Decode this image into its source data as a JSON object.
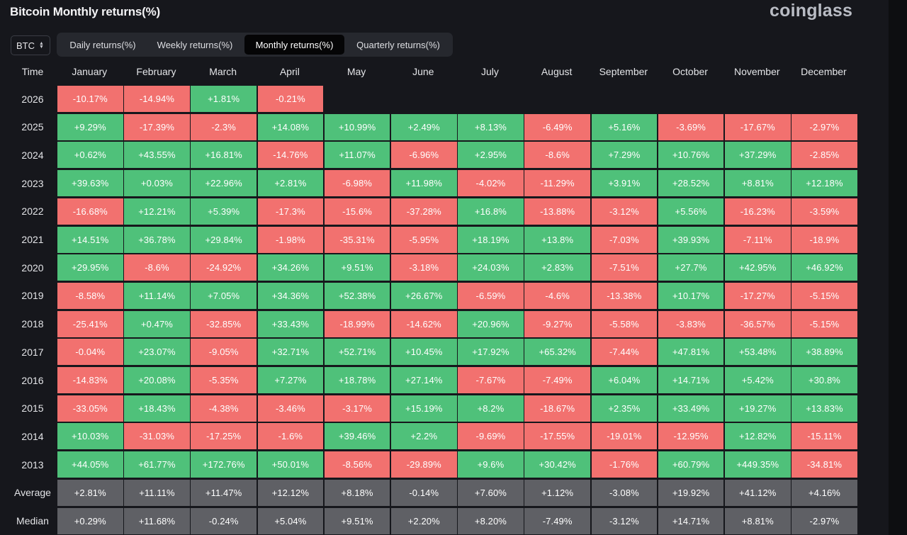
{
  "title": "Bitcoin Monthly returns(%)",
  "logo": "coinglass",
  "coin_select": {
    "value": "BTC",
    "icon": "chevron-up-down-icon"
  },
  "tabs": [
    {
      "label": "Daily returns(%)",
      "active": false
    },
    {
      "label": "Weekly returns(%)",
      "active": false
    },
    {
      "label": "Monthly returns(%)",
      "active": true
    },
    {
      "label": "Quarterly returns(%)",
      "active": false
    }
  ],
  "colors": {
    "positive": "#4fc17a",
    "negative": "#f2716f",
    "stat": "#5f6065",
    "background": "#16171c"
  },
  "table": {
    "time_header": "Time",
    "months": [
      "January",
      "February",
      "March",
      "April",
      "May",
      "June",
      "July",
      "August",
      "September",
      "October",
      "November",
      "December"
    ],
    "rows": [
      {
        "year": "2026",
        "values": [
          "-10.17%",
          "-14.94%",
          "+1.81%",
          "-0.21%"
        ]
      },
      {
        "year": "2025",
        "values": [
          "+9.29%",
          "-17.39%",
          "-2.3%",
          "+14.08%",
          "+10.99%",
          "+2.49%",
          "+8.13%",
          "-6.49%",
          "+5.16%",
          "-3.69%",
          "-17.67%",
          "-2.97%"
        ]
      },
      {
        "year": "2024",
        "values": [
          "+0.62%",
          "+43.55%",
          "+16.81%",
          "-14.76%",
          "+11.07%",
          "-6.96%",
          "+2.95%",
          "-8.6%",
          "+7.29%",
          "+10.76%",
          "+37.29%",
          "-2.85%"
        ]
      },
      {
        "year": "2023",
        "values": [
          "+39.63%",
          "+0.03%",
          "+22.96%",
          "+2.81%",
          "-6.98%",
          "+11.98%",
          "-4.02%",
          "-11.29%",
          "+3.91%",
          "+28.52%",
          "+8.81%",
          "+12.18%"
        ]
      },
      {
        "year": "2022",
        "values": [
          "-16.68%",
          "+12.21%",
          "+5.39%",
          "-17.3%",
          "-15.6%",
          "-37.28%",
          "+16.8%",
          "-13.88%",
          "-3.12%",
          "+5.56%",
          "-16.23%",
          "-3.59%"
        ]
      },
      {
        "year": "2021",
        "values": [
          "+14.51%",
          "+36.78%",
          "+29.84%",
          "-1.98%",
          "-35.31%",
          "-5.95%",
          "+18.19%",
          "+13.8%",
          "-7.03%",
          "+39.93%",
          "-7.11%",
          "-18.9%"
        ]
      },
      {
        "year": "2020",
        "values": [
          "+29.95%",
          "-8.6%",
          "-24.92%",
          "+34.26%",
          "+9.51%",
          "-3.18%",
          "+24.03%",
          "+2.83%",
          "-7.51%",
          "+27.7%",
          "+42.95%",
          "+46.92%"
        ]
      },
      {
        "year": "2019",
        "values": [
          "-8.58%",
          "+11.14%",
          "+7.05%",
          "+34.36%",
          "+52.38%",
          "+26.67%",
          "-6.59%",
          "-4.6%",
          "-13.38%",
          "+10.17%",
          "-17.27%",
          "-5.15%"
        ]
      },
      {
        "year": "2018",
        "values": [
          "-25.41%",
          "+0.47%",
          "-32.85%",
          "+33.43%",
          "-18.99%",
          "-14.62%",
          "+20.96%",
          "-9.27%",
          "-5.58%",
          "-3.83%",
          "-36.57%",
          "-5.15%"
        ]
      },
      {
        "year": "2017",
        "values": [
          "-0.04%",
          "+23.07%",
          "-9.05%",
          "+32.71%",
          "+52.71%",
          "+10.45%",
          "+17.92%",
          "+65.32%",
          "-7.44%",
          "+47.81%",
          "+53.48%",
          "+38.89%"
        ]
      },
      {
        "year": "2016",
        "values": [
          "-14.83%",
          "+20.08%",
          "-5.35%",
          "+7.27%",
          "+18.78%",
          "+27.14%",
          "-7.67%",
          "-7.49%",
          "+6.04%",
          "+14.71%",
          "+5.42%",
          "+30.8%"
        ]
      },
      {
        "year": "2015",
        "values": [
          "-33.05%",
          "+18.43%",
          "-4.38%",
          "-3.46%",
          "-3.17%",
          "+15.19%",
          "+8.2%",
          "-18.67%",
          "+2.35%",
          "+33.49%",
          "+19.27%",
          "+13.83%"
        ]
      },
      {
        "year": "2014",
        "values": [
          "+10.03%",
          "-31.03%",
          "-17.25%",
          "-1.6%",
          "+39.46%",
          "+2.2%",
          "-9.69%",
          "-17.55%",
          "-19.01%",
          "-12.95%",
          "+12.82%",
          "-15.11%"
        ]
      },
      {
        "year": "2013",
        "values": [
          "+44.05%",
          "+61.77%",
          "+172.76%",
          "+50.01%",
          "-8.56%",
          "-29.89%",
          "+9.6%",
          "+30.42%",
          "-1.76%",
          "+60.79%",
          "+449.35%",
          "-34.81%"
        ]
      }
    ],
    "stats": [
      {
        "label": "Average",
        "values": [
          "+2.81%",
          "+11.11%",
          "+11.47%",
          "+12.12%",
          "+8.18%",
          "-0.14%",
          "+7.60%",
          "+1.12%",
          "-3.08%",
          "+19.92%",
          "+41.12%",
          "+4.16%"
        ]
      },
      {
        "label": "Median",
        "values": [
          "+0.29%",
          "+11.68%",
          "-0.24%",
          "+5.04%",
          "+9.51%",
          "+2.20%",
          "+8.20%",
          "-7.49%",
          "-3.12%",
          "+14.71%",
          "+8.81%",
          "-2.97%"
        ]
      }
    ]
  }
}
